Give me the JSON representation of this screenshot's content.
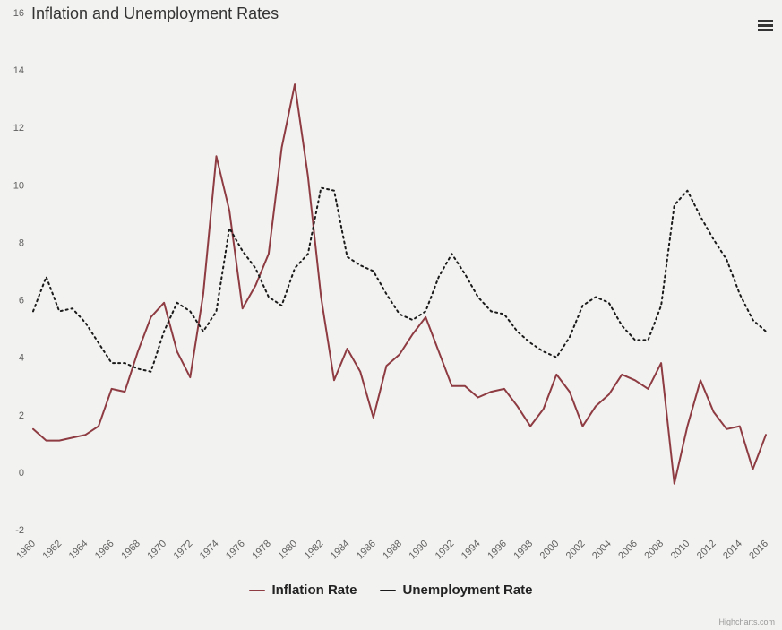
{
  "header": {
    "title": "Inflation and Unemployment Rates"
  },
  "export_menu": {
    "tooltip": "Chart context menu"
  },
  "credits": {
    "label": "Highcharts.com"
  },
  "colors": {
    "background": "#f2f2f0",
    "title_text": "#333333",
    "axis_label": "#606060",
    "legend_text": "#222222",
    "inflation_line": "#8e3b42",
    "unemployment_line": "#1a1a1a"
  },
  "chart_data": {
    "type": "line",
    "title": "Inflation and Unemployment Rates",
    "xlabel": "",
    "ylabel": "",
    "ylim": [
      -2,
      16
    ],
    "grid": false,
    "legend_position": "bottom",
    "x": [
      1960,
      1961,
      1962,
      1963,
      1964,
      1965,
      1966,
      1967,
      1968,
      1969,
      1970,
      1971,
      1972,
      1973,
      1974,
      1975,
      1976,
      1977,
      1978,
      1979,
      1980,
      1981,
      1982,
      1983,
      1984,
      1985,
      1986,
      1987,
      1988,
      1989,
      1990,
      1991,
      1992,
      1993,
      1994,
      1995,
      1996,
      1997,
      1998,
      1999,
      2000,
      2001,
      2002,
      2003,
      2004,
      2005,
      2006,
      2007,
      2008,
      2009,
      2010,
      2011,
      2012,
      2013,
      2014,
      2015,
      2016
    ],
    "x_ticks": [
      1960,
      1962,
      1964,
      1966,
      1968,
      1970,
      1972,
      1974,
      1976,
      1978,
      1980,
      1982,
      1984,
      1986,
      1988,
      1990,
      1992,
      1994,
      1996,
      1998,
      2000,
      2002,
      2004,
      2006,
      2008,
      2010,
      2012,
      2014,
      2016
    ],
    "y_ticks": [
      -2,
      0,
      2,
      4,
      6,
      8,
      10,
      12,
      14,
      16
    ],
    "series": [
      {
        "name": "Inflation Rate",
        "color": "#8e3b42",
        "dash": "solid",
        "values": [
          1.5,
          1.1,
          1.1,
          1.2,
          1.3,
          1.6,
          2.9,
          2.8,
          4.2,
          5.4,
          5.9,
          4.2,
          3.3,
          6.2,
          11.0,
          9.1,
          5.7,
          6.5,
          7.6,
          11.3,
          13.5,
          10.3,
          6.1,
          3.2,
          4.3,
          3.5,
          1.9,
          3.7,
          4.1,
          4.8,
          5.4,
          4.2,
          3.0,
          3.0,
          2.6,
          2.8,
          2.9,
          2.3,
          1.6,
          2.2,
          3.4,
          2.8,
          1.6,
          2.3,
          2.7,
          3.4,
          3.2,
          2.9,
          3.8,
          -0.4,
          1.6,
          3.2,
          2.1,
          1.5,
          1.6,
          0.1,
          1.3
        ]
      },
      {
        "name": "Unemployment Rate",
        "color": "#1a1a1a",
        "dash": "dot",
        "values": [
          5.6,
          6.8,
          5.6,
          5.7,
          5.2,
          4.5,
          3.8,
          3.8,
          3.6,
          3.5,
          4.9,
          5.9,
          5.6,
          4.9,
          5.6,
          8.5,
          7.7,
          7.1,
          6.1,
          5.8,
          7.1,
          7.6,
          9.9,
          9.8,
          7.5,
          7.2,
          7.0,
          6.2,
          5.5,
          5.3,
          5.6,
          6.8,
          7.6,
          6.9,
          6.1,
          5.6,
          5.5,
          4.9,
          4.5,
          4.2,
          4.0,
          4.7,
          5.8,
          6.1,
          5.9,
          5.1,
          4.6,
          4.6,
          5.8,
          9.3,
          9.8,
          8.9,
          8.1,
          7.4,
          6.2,
          5.3,
          4.9
        ]
      }
    ]
  }
}
